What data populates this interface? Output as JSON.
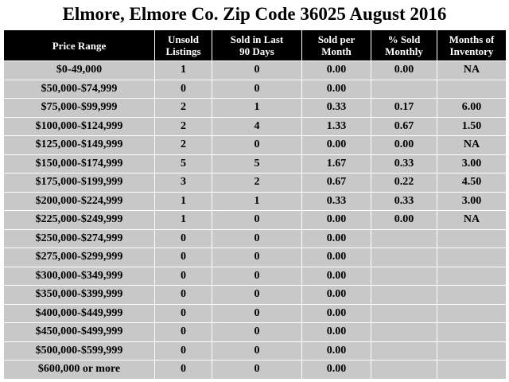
{
  "title": "Elmore, Elmore Co. Zip Code 36025 August 2016",
  "table": {
    "header": [
      [
        "Price Range"
      ],
      [
        "Unsold",
        "Listings"
      ],
      [
        "Sold in Last",
        "90 Days"
      ],
      [
        "Sold per",
        "Month"
      ],
      [
        "% Sold",
        "Monthly"
      ],
      [
        "Months of",
        "Inventory"
      ]
    ],
    "rows": [
      [
        "$0-49,000",
        "1",
        "0",
        "0.00",
        "0.00",
        "NA"
      ],
      [
        "$50,000-$74,999",
        "0",
        "0",
        "0.00",
        null,
        null
      ],
      [
        "$75,000-$99,999",
        "2",
        "1",
        "0.33",
        "0.17",
        "6.00"
      ],
      [
        "$100,000-$124,999",
        "2",
        "4",
        "1.33",
        "0.67",
        "1.50"
      ],
      [
        "$125,000-$149,999",
        "2",
        "0",
        "0.00",
        "0.00",
        "NA"
      ],
      [
        "$150,000-$174,999",
        "5",
        "5",
        "1.67",
        "0.33",
        "3.00"
      ],
      [
        "$175,000-$199,999",
        "3",
        "2",
        "0.67",
        "0.22",
        "4.50"
      ],
      [
        "$200,000-$224,999",
        "1",
        "1",
        "0.33",
        "0.33",
        "3.00"
      ],
      [
        "$225,000-$249,999",
        "1",
        "0",
        "0.00",
        "0.00",
        "NA"
      ],
      [
        "$250,000-$274,999",
        "0",
        "0",
        "0.00",
        null,
        null
      ],
      [
        "$275,000-$299,999",
        "0",
        "0",
        "0.00",
        null,
        null
      ],
      [
        "$300,000-$349,999",
        "0",
        "0",
        "0.00",
        null,
        null
      ],
      [
        "$350,000-$399,999",
        "0",
        "0",
        "0.00",
        null,
        null
      ],
      [
        "$400,000-$449,999",
        "0",
        "0",
        "0.00",
        null,
        null
      ],
      [
        "$450,000-$499,999",
        "0",
        "0",
        "0.00",
        null,
        null
      ],
      [
        "$500,000-$599,999",
        "0",
        "0",
        "0.00",
        null,
        null
      ],
      [
        "$600,000 or more",
        "0",
        "0",
        "0.00",
        null,
        null
      ]
    ]
  }
}
